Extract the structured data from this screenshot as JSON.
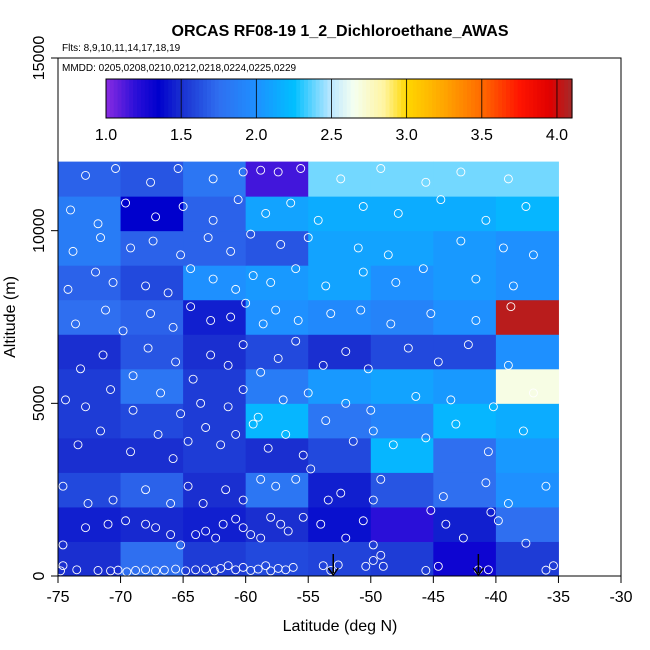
{
  "chart_data": {
    "type": "heatmap",
    "title": "ORCAS RF08-19 1_2_Dichloroethane_AWAS",
    "flights_note": "Flts: 8,9,10,11,14,17,18,19",
    "dates_note": "MMDD: 0205,0208,0210,0212,0218,0224,0225,0229",
    "xlabel": "Latitude (deg N)",
    "ylabel": "Altitude (m)",
    "xlim": [
      -75,
      -30
    ],
    "ylim": [
      0,
      15000
    ],
    "x_ticks": [
      -75,
      -70,
      -65,
      -60,
      -55,
      -50,
      -45,
      -40,
      -35,
      -30
    ],
    "x_tick_labels": [
      "-75",
      "-70",
      "-65",
      "-60",
      "-55",
      "-50",
      "-45",
      "-40",
      "-35",
      "-30"
    ],
    "y_ticks": [
      0,
      5000,
      10000,
      15000
    ],
    "y_tick_labels": [
      "0",
      "5000",
      "10000",
      "15000"
    ],
    "colorbar": {
      "range": [
        1.0,
        4.1
      ],
      "ticks": [
        1.0,
        1.5,
        2.0,
        2.5,
        3.0,
        3.5,
        4.0
      ],
      "tick_labels": [
        "1.0",
        "1.5",
        "2.0",
        "2.5",
        "3.0",
        "3.5",
        "4.0"
      ],
      "stops": [
        [
          1.0,
          "#8a2be2"
        ],
        [
          1.2,
          "#2a0fd8"
        ],
        [
          1.35,
          "#0000cd"
        ],
        [
          1.5,
          "#1a2fd0"
        ],
        [
          1.75,
          "#2f6ff0"
        ],
        [
          2.0,
          "#1e90ff"
        ],
        [
          2.25,
          "#00bfff"
        ],
        [
          2.5,
          "#bfe8ff"
        ],
        [
          2.65,
          "#f5fff0"
        ],
        [
          2.85,
          "#fff4a0"
        ],
        [
          3.0,
          "#ffd700"
        ],
        [
          3.25,
          "#ffa500"
        ],
        [
          3.5,
          "#ff6a00"
        ],
        [
          3.75,
          "#ff1500"
        ],
        [
          3.95,
          "#e00000"
        ],
        [
          4.1,
          "#a52a2a"
        ]
      ]
    },
    "lat_bin_edges": [
      -75,
      -70,
      -65,
      -60,
      -55,
      -50,
      -45,
      -40,
      -35
    ],
    "alt_bin_edges": [
      0,
      1000,
      2000,
      3000,
      4000,
      5000,
      6000,
      7000,
      8000,
      9000,
      10000,
      11000,
      12000
    ],
    "cells": [
      [
        1.5,
        1.75,
        1.55,
        1.6,
        1.58,
        1.55,
        1.3,
        1.55
      ],
      [
        1.45,
        1.48,
        1.45,
        1.5,
        1.4,
        1.2,
        1.45,
        1.75
      ],
      [
        1.6,
        1.7,
        1.5,
        1.8,
        1.45,
        1.65,
        1.75,
        2.0
      ],
      [
        1.5,
        1.5,
        1.55,
        1.5,
        1.6,
        2.2,
        1.75,
        2.05
      ],
      [
        1.55,
        1.6,
        1.55,
        2.2,
        1.8,
        1.9,
        2.2,
        2.15
      ],
      [
        1.55,
        1.8,
        1.55,
        1.85,
        2.05,
        2.1,
        2.05,
        2.68
      ],
      [
        1.5,
        1.65,
        1.5,
        1.6,
        1.5,
        1.6,
        1.6,
        2.0
      ],
      [
        1.75,
        1.7,
        1.45,
        2.0,
        1.95,
        1.9,
        2.0,
        4.05
      ],
      [
        1.7,
        1.6,
        2.0,
        2.05,
        2.1,
        2.0,
        2.05,
        2.0
      ],
      [
        1.85,
        1.7,
        1.7,
        1.65,
        2.1,
        2.1,
        2.05,
        2.0
      ],
      [
        1.85,
        1.35,
        1.7,
        2.1,
        2.15,
        2.15,
        2.15,
        2.2
      ],
      [
        1.7,
        1.65,
        1.8,
        1.15,
        2.4,
        2.4,
        2.4,
        2.4
      ]
    ],
    "sample_points": [
      [
        -74.8,
        150
      ],
      [
        -74.6,
        300
      ],
      [
        -73.5,
        180
      ],
      [
        -71.8,
        160
      ],
      [
        -70.8,
        150
      ],
      [
        -70.2,
        170
      ],
      [
        -69.5,
        120
      ],
      [
        -68.8,
        160
      ],
      [
        -68.0,
        180
      ],
      [
        -67.2,
        150
      ],
      [
        -66.5,
        170
      ],
      [
        -65.6,
        200
      ],
      [
        -64.8,
        150
      ],
      [
        -64.0,
        180
      ],
      [
        -63.2,
        200
      ],
      [
        -62.5,
        150
      ],
      [
        -62.0,
        220
      ],
      [
        -61.4,
        300
      ],
      [
        -60.8,
        180
      ],
      [
        -60.2,
        250
      ],
      [
        -59.6,
        160
      ],
      [
        -59.0,
        200
      ],
      [
        -58.4,
        300
      ],
      [
        -58.0,
        150
      ],
      [
        -57.4,
        220
      ],
      [
        -56.8,
        180
      ],
      [
        -56.2,
        250
      ],
      [
        -53.8,
        300
      ],
      [
        -53.2,
        160
      ],
      [
        -52.6,
        320
      ],
      [
        -50.4,
        280
      ],
      [
        -49.8,
        450
      ],
      [
        -49.0,
        280
      ],
      [
        -45.6,
        160
      ],
      [
        -44.6,
        280
      ],
      [
        -41.4,
        180
      ],
      [
        -40.6,
        180
      ],
      [
        -36.0,
        170
      ],
      [
        -35.4,
        300
      ],
      [
        -74.6,
        900
      ],
      [
        -72.8,
        1400
      ],
      [
        -71.0,
        1500
      ],
      [
        -69.6,
        1600
      ],
      [
        -68.0,
        1500
      ],
      [
        -67.2,
        1400
      ],
      [
        -66.0,
        1200
      ],
      [
        -65.2,
        900
      ],
      [
        -64.0,
        1200
      ],
      [
        -63.2,
        1300
      ],
      [
        -62.4,
        1100
      ],
      [
        -61.8,
        1500
      ],
      [
        -60.8,
        1650
      ],
      [
        -60.2,
        1400
      ],
      [
        -59.6,
        1200
      ],
      [
        -58.8,
        1100
      ],
      [
        -58.0,
        1700
      ],
      [
        -57.2,
        1500
      ],
      [
        -56.6,
        1300
      ],
      [
        -55.4,
        1700
      ],
      [
        -54.0,
        1500
      ],
      [
        -52.0,
        1100
      ],
      [
        -50.6,
        1600
      ],
      [
        -49.8,
        900
      ],
      [
        -49.2,
        600
      ],
      [
        -45.2,
        1900
      ],
      [
        -44.0,
        1500
      ],
      [
        -42.6,
        1100
      ],
      [
        -40.4,
        1850
      ],
      [
        -39.8,
        1600
      ],
      [
        -37.6,
        950
      ],
      [
        -74.6,
        2600
      ],
      [
        -72.6,
        2100
      ],
      [
        -70.6,
        2200
      ],
      [
        -68.0,
        2500
      ],
      [
        -66.0,
        2100
      ],
      [
        -64.6,
        2600
      ],
      [
        -63.4,
        2100
      ],
      [
        -61.6,
        2500
      ],
      [
        -60.2,
        2200
      ],
      [
        -58.8,
        2800
      ],
      [
        -57.6,
        2600
      ],
      [
        -56.0,
        2800
      ],
      [
        -54.8,
        3100
      ],
      [
        -53.4,
        2200
      ],
      [
        -52.4,
        2400
      ],
      [
        -49.8,
        2200
      ],
      [
        -49.2,
        2800
      ],
      [
        -44.2,
        2300
      ],
      [
        -40.8,
        2700
      ],
      [
        -39.0,
        2100
      ],
      [
        -36.0,
        2600
      ],
      [
        -73.4,
        3800
      ],
      [
        -71.6,
        4200
      ],
      [
        -69.2,
        3600
      ],
      [
        -67.0,
        4100
      ],
      [
        -65.8,
        3400
      ],
      [
        -64.6,
        3900
      ],
      [
        -63.2,
        4300
      ],
      [
        -62.0,
        3800
      ],
      [
        -60.8,
        4100
      ],
      [
        -59.4,
        4400
      ],
      [
        -58.2,
        3700
      ],
      [
        -56.8,
        4100
      ],
      [
        -55.4,
        3500
      ],
      [
        -53.6,
        4500
      ],
      [
        -51.4,
        3900
      ],
      [
        -49.8,
        4200
      ],
      [
        -48.2,
        3800
      ],
      [
        -45.6,
        4000
      ],
      [
        -43.2,
        4400
      ],
      [
        -40.6,
        3600
      ],
      [
        -37.8,
        4200
      ],
      [
        -74.4,
        5100
      ],
      [
        -72.8,
        4900
      ],
      [
        -70.8,
        5400
      ],
      [
        -69.0,
        4800
      ],
      [
        -66.8,
        5300
      ],
      [
        -65.2,
        4700
      ],
      [
        -63.6,
        5000
      ],
      [
        -61.4,
        4900
      ],
      [
        -60.2,
        5400
      ],
      [
        -59.0,
        4600
      ],
      [
        -57.0,
        5100
      ],
      [
        -55.0,
        5300
      ],
      [
        -52.0,
        5000
      ],
      [
        -50.0,
        4800
      ],
      [
        -46.4,
        5200
      ],
      [
        -43.6,
        5100
      ],
      [
        -40.2,
        4900
      ],
      [
        -37.0,
        5300
      ],
      [
        -73.2,
        6000
      ],
      [
        -71.4,
        6400
      ],
      [
        -69.0,
        5800
      ],
      [
        -67.8,
        6600
      ],
      [
        -65.6,
        6200
      ],
      [
        -64.2,
        5700
      ],
      [
        -62.8,
        6400
      ],
      [
        -61.4,
        6100
      ],
      [
        -60.2,
        6700
      ],
      [
        -58.8,
        5900
      ],
      [
        -57.4,
        6300
      ],
      [
        -56.0,
        6800
      ],
      [
        -53.8,
        6100
      ],
      [
        -52.0,
        6500
      ],
      [
        -50.2,
        6000
      ],
      [
        -47.0,
        6600
      ],
      [
        -44.6,
        6200
      ],
      [
        -42.2,
        6700
      ],
      [
        -39.0,
        6100
      ],
      [
        -73.6,
        7300
      ],
      [
        -71.2,
        7700
      ],
      [
        -69.8,
        7100
      ],
      [
        -67.6,
        7600
      ],
      [
        -65.8,
        7200
      ],
      [
        -64.4,
        7800
      ],
      [
        -62.8,
        7400
      ],
      [
        -61.2,
        7500
      ],
      [
        -60.0,
        7900
      ],
      [
        -58.6,
        7300
      ],
      [
        -57.6,
        7700
      ],
      [
        -55.8,
        7400
      ],
      [
        -53.2,
        7600
      ],
      [
        -50.8,
        7700
      ],
      [
        -48.4,
        7300
      ],
      [
        -45.2,
        7600
      ],
      [
        -41.6,
        7400
      ],
      [
        -38.8,
        7800
      ],
      [
        -74.2,
        8300
      ],
      [
        -72.0,
        8800
      ],
      [
        -70.6,
        8500
      ],
      [
        -68.0,
        8400
      ],
      [
        -66.2,
        8200
      ],
      [
        -64.4,
        8900
      ],
      [
        -62.6,
        8600
      ],
      [
        -60.8,
        8300
      ],
      [
        -59.4,
        8700
      ],
      [
        -58.0,
        8500
      ],
      [
        -56.0,
        8900
      ],
      [
        -53.6,
        8400
      ],
      [
        -50.6,
        8800
      ],
      [
        -48.0,
        8500
      ],
      [
        -45.8,
        8900
      ],
      [
        -41.6,
        8600
      ],
      [
        -38.6,
        8400
      ],
      [
        -73.8,
        9400
      ],
      [
        -71.6,
        9800
      ],
      [
        -69.2,
        9500
      ],
      [
        -67.4,
        9700
      ],
      [
        -65.2,
        9300
      ],
      [
        -63.0,
        9800
      ],
      [
        -61.2,
        9400
      ],
      [
        -59.6,
        9900
      ],
      [
        -57.2,
        9600
      ],
      [
        -55.0,
        9800
      ],
      [
        -51.0,
        9500
      ],
      [
        -48.6,
        9300
      ],
      [
        -42.8,
        9700
      ],
      [
        -39.4,
        9500
      ],
      [
        -37.0,
        9300
      ],
      [
        -74.0,
        10600
      ],
      [
        -71.8,
        10200
      ],
      [
        -69.6,
        10800
      ],
      [
        -67.2,
        10400
      ],
      [
        -65.0,
        10700
      ],
      [
        -62.6,
        10300
      ],
      [
        -60.6,
        10900
      ],
      [
        -58.4,
        10500
      ],
      [
        -56.4,
        10800
      ],
      [
        -54.2,
        10300
      ],
      [
        -50.6,
        10700
      ],
      [
        -47.8,
        10500
      ],
      [
        -44.4,
        10900
      ],
      [
        -40.8,
        10300
      ],
      [
        -37.6,
        10700
      ],
      [
        -72.8,
        11600
      ],
      [
        -70.4,
        11800
      ],
      [
        -67.6,
        11400
      ],
      [
        -65.4,
        11800
      ],
      [
        -62.6,
        11500
      ],
      [
        -60.2,
        11700
      ],
      [
        -58.8,
        11750
      ],
      [
        -57.4,
        11700
      ],
      [
        -55.6,
        11800
      ],
      [
        -52.4,
        11500
      ],
      [
        -49.2,
        11800
      ],
      [
        -45.6,
        11400
      ],
      [
        -42.8,
        11700
      ],
      [
        -39.0,
        11500
      ]
    ],
    "flight_markers_lat": [
      -53.0,
      -41.4
    ]
  }
}
